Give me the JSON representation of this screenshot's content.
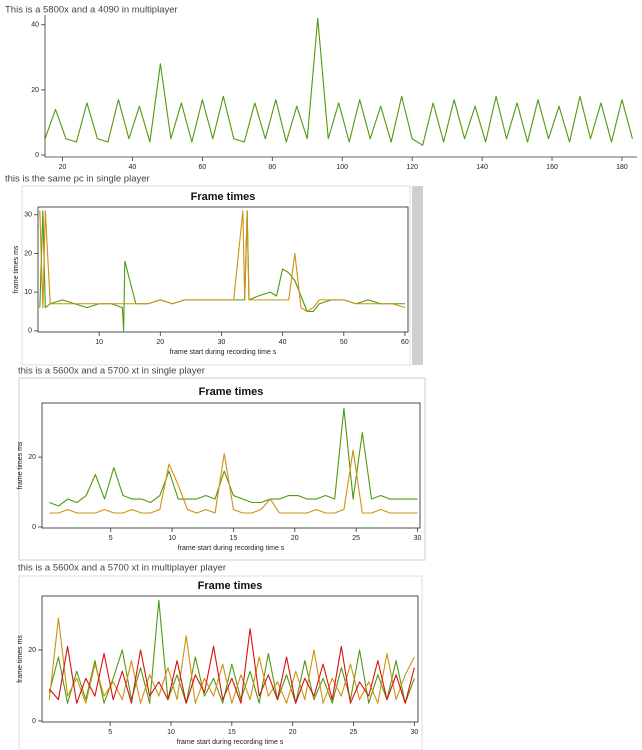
{
  "chart_data": [
    {
      "type": "line",
      "caption": "This is a 5800x and a 4090 in multiplayer",
      "x": [
        15,
        18,
        21,
        24,
        27,
        30,
        33,
        36,
        39,
        42,
        45,
        48,
        51,
        54,
        57,
        60,
        63,
        66,
        69,
        72,
        75,
        78,
        81,
        84,
        87,
        90,
        93,
        96,
        99,
        102,
        105,
        108,
        111,
        114,
        117,
        120,
        123,
        126,
        129,
        132,
        135,
        138,
        141,
        144,
        147,
        150,
        153,
        156,
        159,
        162,
        165,
        168,
        171,
        174,
        177,
        180,
        183
      ],
      "series": [
        {
          "color": "#4f9a0f",
          "values": [
            5,
            14,
            5,
            4,
            16,
            5,
            4,
            17,
            5,
            15,
            4,
            28,
            5,
            16,
            4,
            17,
            5,
            18,
            5,
            4,
            16,
            5,
            17,
            4,
            15,
            5,
            42,
            5,
            16,
            4,
            17,
            5,
            15,
            4,
            18,
            5,
            3,
            16,
            4,
            17,
            5,
            15,
            4,
            18,
            5,
            16,
            4,
            17,
            5,
            15,
            4,
            18,
            5,
            16,
            4,
            17,
            5
          ]
        }
      ],
      "xlim": [
        15,
        184.3
      ],
      "ylim": [
        -0.6,
        43
      ],
      "xticks": [
        20,
        40,
        60,
        80,
        100,
        120,
        140,
        160,
        180
      ],
      "yticks": [
        0,
        20,
        40
      ]
    },
    {
      "type": "line",
      "caption": "this is the same pc in single player",
      "title": "Frame times",
      "xlabel": "frame start during recording time s",
      "ylabel": "frame times ms",
      "x": [
        0.3,
        0.8,
        1.2,
        2,
        4,
        6,
        8,
        10,
        12,
        13.8,
        14,
        14.2,
        16,
        18,
        20,
        22,
        24,
        26,
        28,
        30,
        32,
        33.5,
        33.8,
        34.2,
        34.5,
        36,
        38,
        39,
        40,
        41,
        42,
        43,
        44,
        45,
        46,
        48,
        50,
        52,
        54,
        56,
        58,
        60
      ],
      "series": [
        {
          "color": "#4f9a0f",
          "values": [
            6,
            31,
            6,
            7,
            8,
            7,
            6,
            7,
            7,
            6,
            0,
            18,
            7,
            7,
            8,
            7,
            8,
            8,
            8,
            8,
            8,
            8,
            8,
            31,
            8,
            9,
            10,
            9,
            16,
            15,
            13,
            9,
            5,
            5,
            7,
            8,
            8,
            7,
            8,
            7,
            7,
            7
          ]
        },
        {
          "color": "#d09010",
          "values": [
            31,
            6,
            31,
            7,
            7,
            7,
            7,
            7,
            7,
            7,
            7,
            7,
            7,
            7,
            8,
            7,
            8,
            8,
            8,
            8,
            8,
            31,
            8,
            31,
            8,
            8,
            8,
            8,
            8,
            8,
            20,
            6,
            5,
            6,
            8,
            8,
            8,
            7,
            7,
            7,
            7,
            6
          ]
        }
      ],
      "xlim": [
        0,
        60.5
      ],
      "ylim": [
        -0.3,
        32
      ],
      "xticks": [
        10,
        20,
        30,
        40,
        50,
        60
      ],
      "yticks": [
        0,
        10,
        20,
        30
      ]
    },
    {
      "type": "line",
      "caption": "this is a 5600x and a 5700 xt in single player",
      "title": "Frame times",
      "xlabel": "frame start during recording time s",
      "ylabel": "frame times ms",
      "x": [
        0,
        0.75,
        1.5,
        2.25,
        3,
        3.75,
        4.5,
        5.25,
        6,
        6.75,
        7.5,
        8.25,
        9,
        9.75,
        10.5,
        11.25,
        12,
        12.75,
        13.5,
        14.25,
        15,
        15.75,
        16.5,
        17.25,
        18,
        18.75,
        19.5,
        20.25,
        21,
        21.75,
        22.5,
        23.25,
        24,
        24.75,
        25.5,
        26.25,
        27,
        27.75,
        28.5,
        29.25,
        30
      ],
      "series": [
        {
          "color": "#4f9a0f",
          "values": [
            7,
            6,
            8,
            7,
            9,
            15,
            8,
            17,
            9,
            8,
            8,
            7,
            9,
            16,
            8,
            8,
            8,
            9,
            8,
            16,
            9,
            8,
            7,
            7,
            8,
            8,
            9,
            9,
            8,
            8,
            9,
            8,
            34,
            8,
            27,
            8,
            9,
            8,
            8,
            8,
            8
          ]
        },
        {
          "color": "#d09010",
          "values": [
            4,
            4,
            5,
            4,
            4,
            4,
            5,
            4,
            4,
            5,
            4,
            4,
            5,
            18,
            12,
            5,
            4,
            5,
            4,
            21,
            5,
            4,
            4,
            5,
            8,
            4,
            4,
            4,
            4,
            5,
            4,
            4,
            5,
            22,
            4,
            4,
            5,
            4,
            4,
            4,
            4
          ]
        }
      ],
      "xlim": [
        -0.6,
        30.2
      ],
      "ylim": [
        -0.3,
        35.5
      ],
      "xticks": [
        5,
        10,
        15,
        20,
        25,
        30
      ],
      "yticks": [
        0,
        20
      ]
    },
    {
      "type": "line",
      "caption": "this is a 5600x and a 5700 xt in multiplayer player",
      "title": "Frame times",
      "xlabel": "frame start during recording time s",
      "ylabel": "frame times ms",
      "x": [
        0,
        0.75,
        1.5,
        2.25,
        3,
        3.75,
        4.5,
        5.25,
        6,
        6.75,
        7.5,
        8.25,
        9,
        9.75,
        10.5,
        11.25,
        12,
        12.75,
        13.5,
        14.25,
        15,
        15.75,
        16.5,
        17.25,
        18,
        18.75,
        19.5,
        20.25,
        21,
        21.75,
        22.5,
        23.25,
        24,
        24.75,
        25.5,
        26.25,
        27,
        27.75,
        28.5,
        29.25,
        30
      ],
      "series": [
        {
          "color": "#4f9a0f",
          "values": [
            8,
            18,
            5,
            14,
            6,
            17,
            5,
            12,
            20,
            6,
            15,
            5,
            34,
            6,
            13,
            5,
            18,
            7,
            12,
            5,
            16,
            6,
            14,
            5,
            19,
            6,
            13,
            5,
            17,
            6,
            12,
            5,
            15,
            6,
            20,
            5,
            13,
            6,
            17,
            5,
            12
          ]
        },
        {
          "color": "#d09010",
          "values": [
            6,
            29,
            7,
            12,
            5,
            16,
            7,
            11,
            6,
            17,
            5,
            13,
            7,
            15,
            6,
            24,
            5,
            12,
            7,
            16,
            5,
            13,
            6,
            18,
            7,
            11,
            5,
            14,
            6,
            20,
            5,
            12,
            7,
            16,
            6,
            11,
            5,
            19,
            6,
            13,
            18
          ]
        },
        {
          "color": "#d81010",
          "values": [
            9,
            6,
            21,
            5,
            12,
            7,
            19,
            6,
            14,
            5,
            20,
            7,
            11,
            6,
            17,
            5,
            13,
            8,
            21,
            6,
            12,
            5,
            26,
            7,
            13,
            6,
            18,
            5,
            12,
            7,
            16,
            6,
            21,
            5,
            11,
            7,
            17,
            6,
            13,
            5,
            15
          ]
        }
      ],
      "xlim": [
        -0.6,
        30.3
      ],
      "ylim": [
        -0.3,
        35.2
      ],
      "xticks": [
        5,
        10,
        15,
        20,
        25,
        30
      ],
      "yticks": [
        0,
        20
      ]
    }
  ]
}
